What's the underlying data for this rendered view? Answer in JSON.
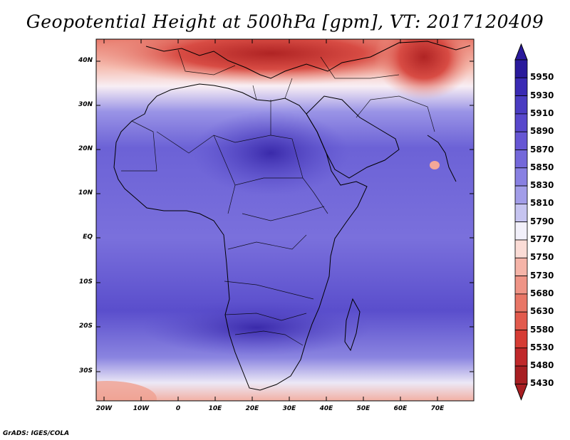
{
  "title": "Geopotential Height at 500hPa [gpm], VT: 2017120409",
  "credit": "GrADS: IGES/COLA",
  "map": {
    "y_ticks": [
      "40N",
      "30N",
      "20N",
      "10N",
      "EQ",
      "10S",
      "20S",
      "30S"
    ],
    "x_ticks": [
      "20W",
      "10W",
      "0",
      "10E",
      "20E",
      "30E",
      "40E",
      "50E",
      "60E",
      "70E"
    ]
  },
  "colorbar": {
    "labels": [
      "5950",
      "5930",
      "5910",
      "5890",
      "5870",
      "5850",
      "5830",
      "5810",
      "5790",
      "5770",
      "5750",
      "5730",
      "5680",
      "5630",
      "5580",
      "5530",
      "5480",
      "5430"
    ],
    "colors": [
      "#2a1a9c",
      "#3a2ab4",
      "#4a3cc2",
      "#5848cc",
      "#6656d4",
      "#7468da",
      "#8880e2",
      "#a29de8",
      "#c6c4f0",
      "#f2f0fa",
      "#fbdcd6",
      "#f5b4a8",
      "#ef9486",
      "#e87666",
      "#e25a4c",
      "#d63c34",
      "#c0282a",
      "#a81e22"
    ]
  },
  "colors": {
    "hot": "#c02a2a",
    "warm": "#f0a090",
    "neutral": "#f8f4f8",
    "cool": "#8c86e4",
    "deep": "#4a40c8"
  }
}
